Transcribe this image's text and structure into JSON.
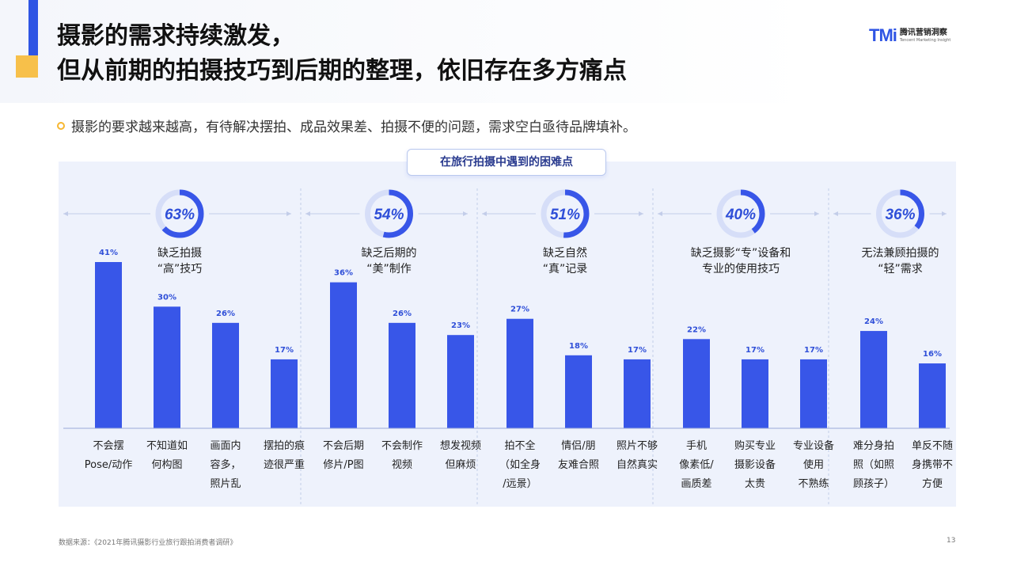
{
  "header": {
    "title_line1": "摄影的需求持续激发，",
    "title_line2": "但从前期的拍摄技巧到后期的整理，依旧存在多方痛点",
    "logo_mark": "TMi",
    "logo_cn": "腾讯营销洞察",
    "logo_en": "Tencent Marketing Insight"
  },
  "subtitle": "摄影的要求越来越高，有待解决摆拍、成品效果差、拍摄不便的问题，需求空白亟待品牌填补。",
  "panel_title": "在旅行拍摄中遇到的困难点",
  "colors": {
    "bar": "#3856e8",
    "ring": "#3856e8",
    "ring_track": "#d6def8",
    "accent": "#f7c04a"
  },
  "chart_data": {
    "type": "bar",
    "title": "在旅行拍摄中遇到的困难点",
    "ylim": [
      0,
      45
    ],
    "value_unit": "%",
    "groups": [
      {
        "percent": 63,
        "percent_label": "63%",
        "label_lines": [
          "缺乏拍摄",
          "“高”技巧"
        ],
        "bars": [
          {
            "value": 41,
            "value_label": "41%",
            "label_lines": [
              "不会摆",
              "Pose/动作"
            ]
          },
          {
            "value": 30,
            "value_label": "30%",
            "label_lines": [
              "不知道如",
              "何构图"
            ]
          },
          {
            "value": 26,
            "value_label": "26%",
            "label_lines": [
              "画面内",
              "容多，",
              "照片乱"
            ]
          },
          {
            "value": 17,
            "value_label": "17%",
            "label_lines": [
              "摆拍的痕",
              "迹很严重"
            ]
          }
        ]
      },
      {
        "percent": 54,
        "percent_label": "54%",
        "label_lines": [
          "缺乏后期的",
          "“美”制作"
        ],
        "bars": [
          {
            "value": 36,
            "value_label": "36%",
            "label_lines": [
              "不会后期",
              "修片/P图"
            ]
          },
          {
            "value": 26,
            "value_label": "26%",
            "label_lines": [
              "不会制作",
              "视频"
            ]
          },
          {
            "value": 23,
            "value_label": "23%",
            "label_lines": [
              "想发视频",
              "但麻烦"
            ]
          }
        ]
      },
      {
        "percent": 51,
        "percent_label": "51%",
        "label_lines": [
          "缺乏自然",
          "“真”记录"
        ],
        "bars": [
          {
            "value": 27,
            "value_label": "27%",
            "label_lines": [
              "拍不全",
              "（如全身",
              "/远景）"
            ]
          },
          {
            "value": 18,
            "value_label": "18%",
            "label_lines": [
              "情侣/朋",
              "友难合照"
            ]
          },
          {
            "value": 17,
            "value_label": "17%",
            "label_lines": [
              "照片不够",
              "自然真实"
            ]
          }
        ]
      },
      {
        "percent": 40,
        "percent_label": "40%",
        "label_lines": [
          "缺乏摄影“专”设备和",
          "专业的使用技巧"
        ],
        "bars": [
          {
            "value": 22,
            "value_label": "22%",
            "label_lines": [
              "手机",
              "像素低/",
              "画质差"
            ]
          },
          {
            "value": 17,
            "value_label": "17%",
            "label_lines": [
              "购买专业",
              "摄影设备",
              "太贵"
            ]
          },
          {
            "value": 17,
            "value_label": "17%",
            "label_lines": [
              "专业设备",
              "使用",
              "不熟练"
            ]
          }
        ]
      },
      {
        "percent": 36,
        "percent_label": "36%",
        "label_lines": [
          "无法兼顾拍摄的",
          "“轻”需求"
        ],
        "bars": [
          {
            "value": 24,
            "value_label": "24%",
            "label_lines": [
              "难分身拍",
              "照（如照",
              "顾孩子）"
            ]
          },
          {
            "value": 16,
            "value_label": "16%",
            "label_lines": [
              "单反不随",
              "身携带不",
              "方便"
            ]
          }
        ]
      }
    ]
  },
  "footer": {
    "source": "数据来源：《2021年腾讯摄影行业旅行跟拍消费者调研》",
    "page_number": "13"
  }
}
